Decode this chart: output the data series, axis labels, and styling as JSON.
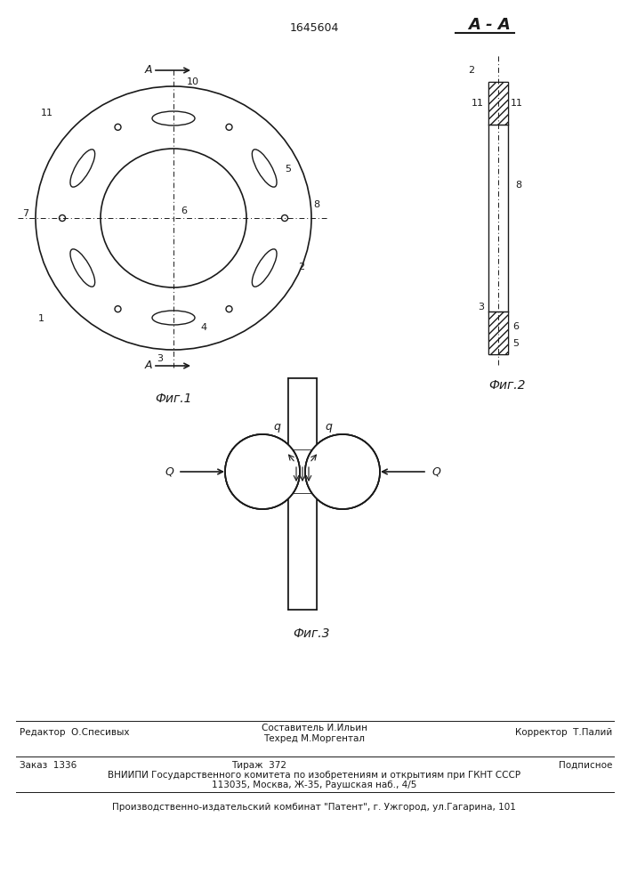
{
  "patent_number": "1645604",
  "fig1_caption": "Фиг.1",
  "fig2_caption": "Фиг.2",
  "fig3_caption": "Фиг.3",
  "aa_label": "А - А",
  "background": "#ffffff",
  "line_color": "#1a1a1a",
  "footer_line1_left": "Редактор  О.Спесивых",
  "footer_line1_center1": "Составитель И.Ильин",
  "footer_line1_center2": "Техред М.Моргентал",
  "footer_line1_right": "Корректор  Т.Палий",
  "footer_line2_left": "Заказ  1336",
  "footer_line2_center": "Тираж  372",
  "footer_line2_right": "Подписное",
  "footer_line3": "ВНИИПИ Государственного комитета по изобретениям и открытиям при ГКНТ СССР",
  "footer_line4": "113035, Москва, Ж-35, Раушская наб., 4/5",
  "footer_line5": "Производственно-издательский комбинат \"Патент\", г. Ужгород, ул.Гагарина, 101"
}
